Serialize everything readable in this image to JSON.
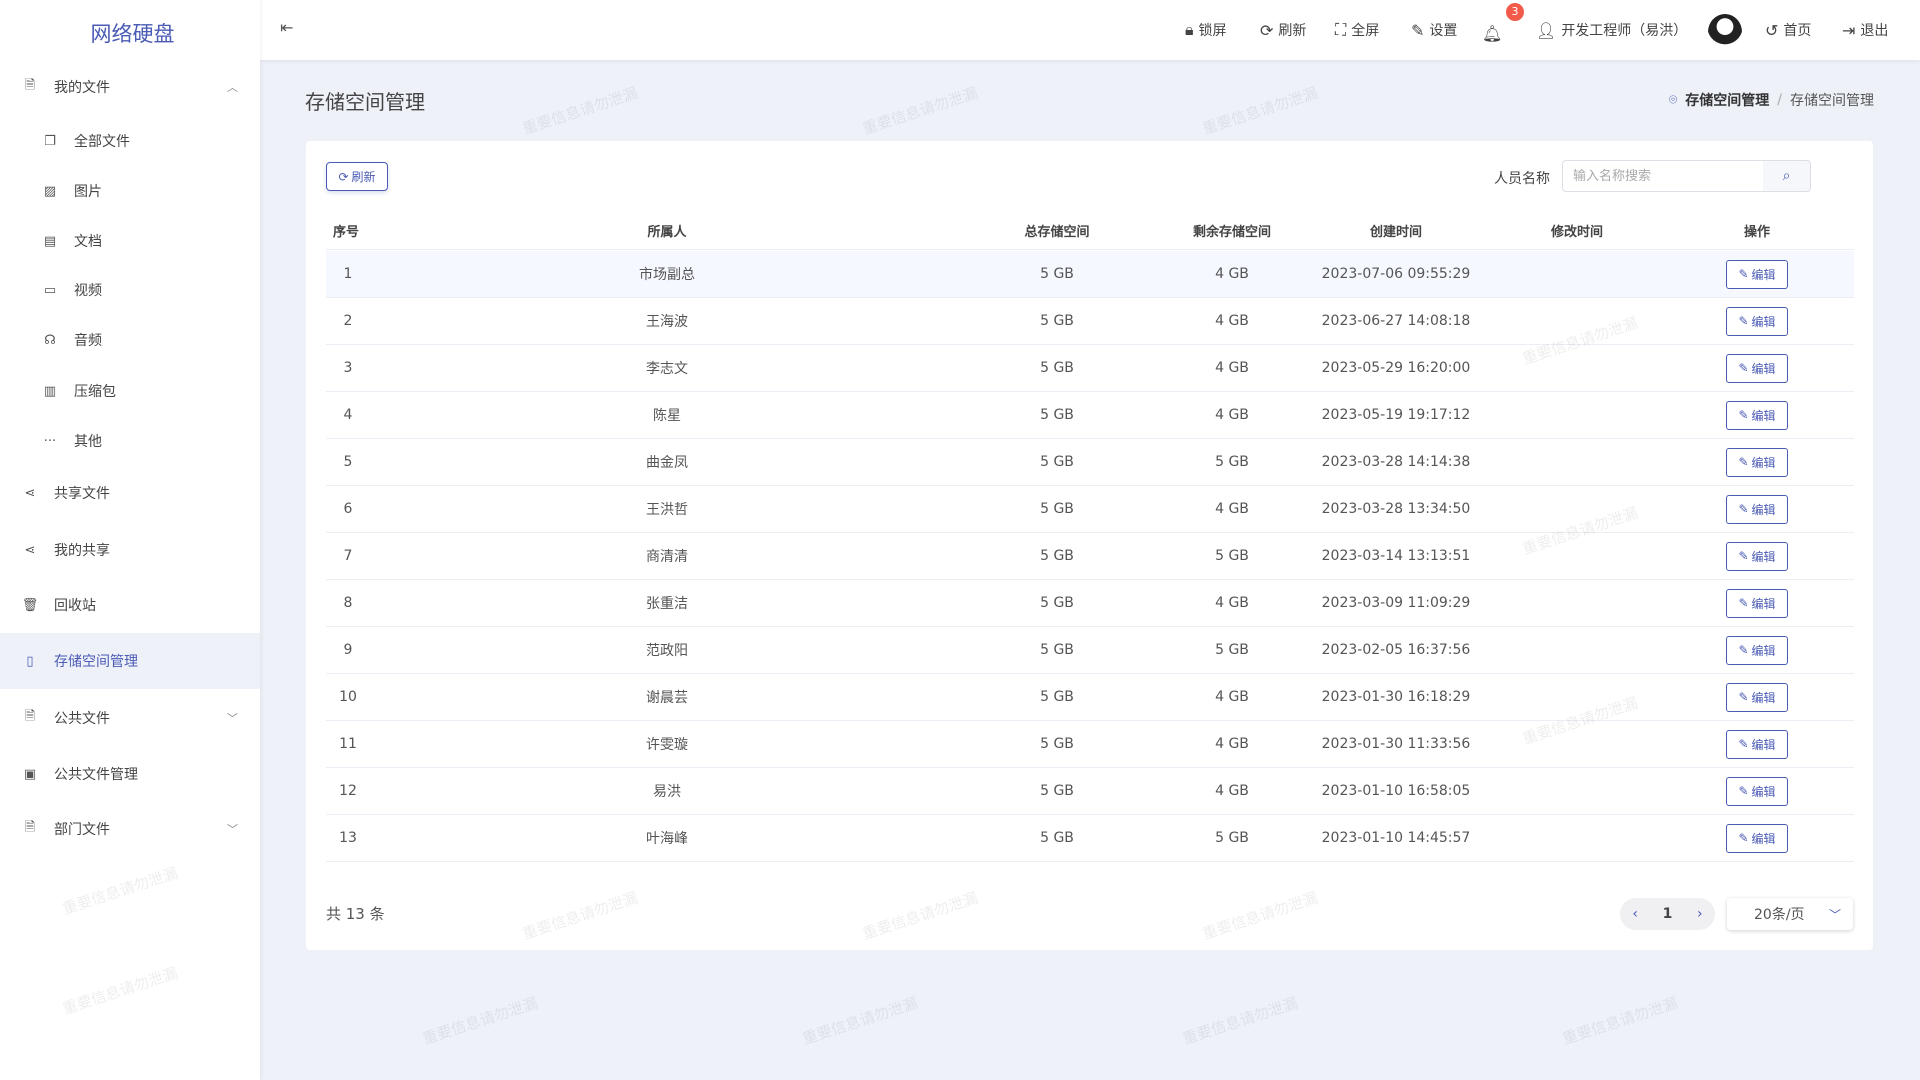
{
  "app": {
    "logo": "网络硬盘",
    "watermark": "重要信息请勿泄漏",
    "accent": "#4a5bb5"
  },
  "sidebar": {
    "items": [
      {
        "label": "我的文件",
        "icon": "file-icon",
        "level": 1,
        "chevron": "up"
      },
      {
        "label": "全部文件",
        "icon": "files-icon",
        "level": 2
      },
      {
        "label": "图片",
        "icon": "image-icon",
        "level": 2
      },
      {
        "label": "文档",
        "icon": "document-icon",
        "level": 2
      },
      {
        "label": "视频",
        "icon": "video-icon",
        "level": 2
      },
      {
        "label": "音频",
        "icon": "headphones-icon",
        "level": 2
      },
      {
        "label": "压缩包",
        "icon": "archive-icon",
        "level": 2
      },
      {
        "label": "其他",
        "icon": "more-icon",
        "level": 2
      },
      {
        "label": "共享文件",
        "icon": "share-icon",
        "level": 1
      },
      {
        "label": "我的共享",
        "icon": "share-icon",
        "level": 1
      },
      {
        "label": "回收站",
        "icon": "trash-icon",
        "level": 1
      },
      {
        "label": "存储空间管理",
        "icon": "storage-icon",
        "level": 1,
        "active": true
      },
      {
        "label": "公共文件",
        "icon": "file-icon",
        "level": 1,
        "chevron": "down"
      },
      {
        "label": "公共文件管理",
        "icon": "folder-icon",
        "level": 1
      },
      {
        "label": "部门文件",
        "icon": "file-icon",
        "level": 1,
        "chevron": "down"
      }
    ]
  },
  "header": {
    "lock": "锁屏",
    "refresh": "刷新",
    "fullscreen": "全屏",
    "settings": "设置",
    "notifications": "3",
    "user": "开发工程师（易洪）",
    "home": "首页",
    "logout": "退出"
  },
  "page": {
    "title": "存储空间管理",
    "breadcrumb": [
      "存储空间管理",
      "存储空间管理"
    ],
    "refresh_button": "刷新",
    "search_label": "人员名称",
    "search_placeholder": "输入名称搜索",
    "search_value": ""
  },
  "table": {
    "columns": [
      "序号",
      "所属人",
      "总存储空间",
      "剩余存储空间",
      "创建时间",
      "修改时间",
      "操作"
    ],
    "edit_label": "编辑",
    "rows": [
      [
        "1",
        "市场副总",
        "5 GB",
        "4 GB",
        "2023-07-06 09:55:29",
        ""
      ],
      [
        "2",
        "王海波",
        "5 GB",
        "4 GB",
        "2023-06-27 14:08:18",
        ""
      ],
      [
        "3",
        "李志文",
        "5 GB",
        "4 GB",
        "2023-05-29 16:20:00",
        ""
      ],
      [
        "4",
        "陈星",
        "5 GB",
        "4 GB",
        "2023-05-19 19:17:12",
        ""
      ],
      [
        "5",
        "曲金凤",
        "5 GB",
        "5 GB",
        "2023-03-28 14:14:38",
        ""
      ],
      [
        "6",
        "王洪哲",
        "5 GB",
        "4 GB",
        "2023-03-28 13:34:50",
        ""
      ],
      [
        "7",
        "商清清",
        "5 GB",
        "5 GB",
        "2023-03-14 13:13:51",
        ""
      ],
      [
        "8",
        "张重洁",
        "5 GB",
        "4 GB",
        "2023-03-09 11:09:29",
        ""
      ],
      [
        "9",
        "范政阳",
        "5 GB",
        "5 GB",
        "2023-02-05 16:37:56",
        ""
      ],
      [
        "10",
        "谢晨芸",
        "5 GB",
        "4 GB",
        "2023-01-30 16:18:29",
        ""
      ],
      [
        "11",
        "许雯璇",
        "5 GB",
        "4 GB",
        "2023-01-30 11:33:56",
        ""
      ],
      [
        "12",
        "易洪",
        "5 GB",
        "4 GB",
        "2023-01-10 16:58:05",
        ""
      ],
      [
        "13",
        "叶海峰",
        "5 GB",
        "5 GB",
        "2023-01-10 14:45:57",
        ""
      ]
    ]
  },
  "footer": {
    "total": "共 13 条",
    "current_page": "1",
    "page_size": "20条/页"
  }
}
